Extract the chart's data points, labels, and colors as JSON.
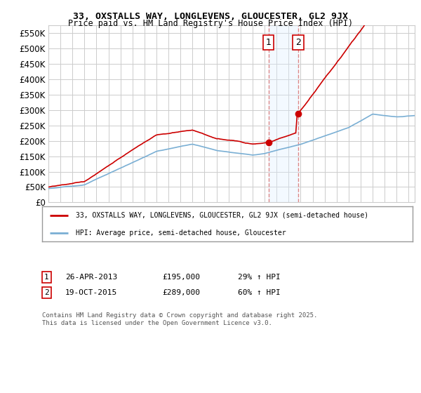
{
  "title": "33, OXSTALLS WAY, LONGLEVENS, GLOUCESTER, GL2 9JX",
  "subtitle": "Price paid vs. HM Land Registry's House Price Index (HPI)",
  "ylim": [
    0,
    575000
  ],
  "yticks": [
    0,
    50000,
    100000,
    150000,
    200000,
    250000,
    300000,
    350000,
    400000,
    450000,
    500000,
    550000
  ],
  "ytick_labels": [
    "£0",
    "£50K",
    "£100K",
    "£150K",
    "£200K",
    "£250K",
    "£300K",
    "£350K",
    "£400K",
    "£450K",
    "£500K",
    "£550K"
  ],
  "bg_color": "#ffffff",
  "plot_bg_color": "#ffffff",
  "grid_color": "#cccccc",
  "red_color": "#cc0000",
  "blue_color": "#7aafd4",
  "vline_color": "#dd8888",
  "span_color": "#ddeeff",
  "purchase1": {
    "date": 2013.32,
    "price": 195000,
    "label": "1"
  },
  "purchase2": {
    "date": 2015.8,
    "price": 289000,
    "label": "2"
  },
  "legend_entry1": "33, OXSTALLS WAY, LONGLEVENS, GLOUCESTER, GL2 9JX (semi-detached house)",
  "legend_entry2": "HPI: Average price, semi-detached house, Gloucester",
  "footer": "Contains HM Land Registry data © Crown copyright and database right 2025.\nThis data is licensed under the Open Government Licence v3.0.",
  "table_row1": [
    "1",
    "26-APR-2013",
    "£195,000",
    "29% ↑ HPI"
  ],
  "table_row2": [
    "2",
    "19-OCT-2015",
    "£289,000",
    "60% ↑ HPI"
  ]
}
